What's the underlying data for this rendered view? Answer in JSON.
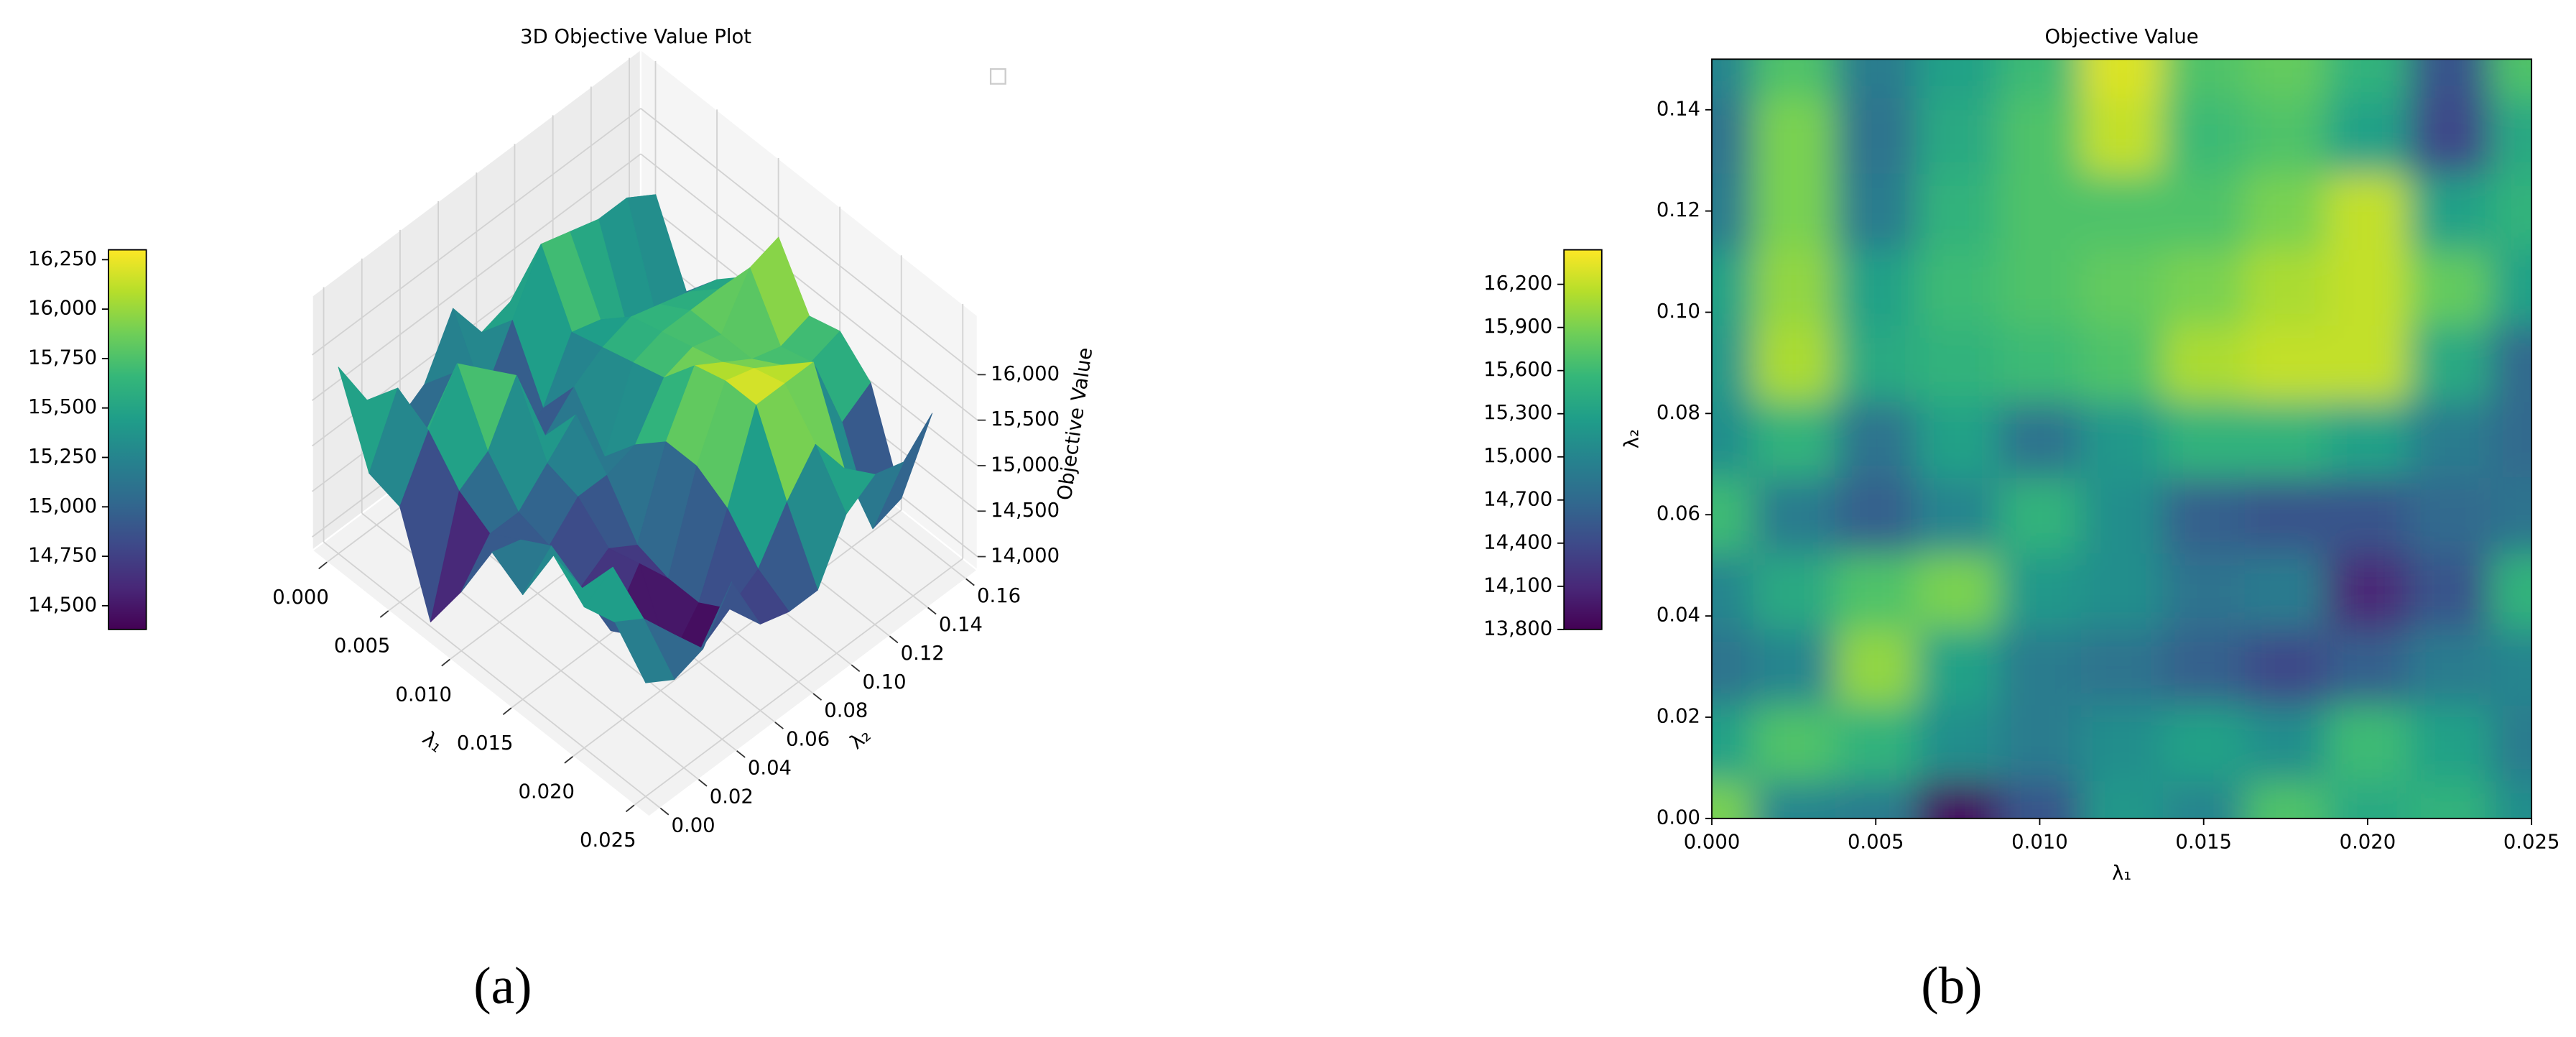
{
  "chart_data": [
    {
      "type": "surface3d",
      "title": "3D Objective Value Plot",
      "x_label": "λ₁",
      "y_label": "λ₂",
      "z_label": "Objective Value",
      "caption": "(a)",
      "colormap": "viridis",
      "x": [
        0,
        0.0025,
        0.005,
        0.0075,
        0.01,
        0.0125,
        0.015,
        0.0175,
        0.02,
        0.0225,
        0.025
      ],
      "y": [
        0,
        0.015,
        0.03,
        0.045,
        0.06,
        0.075,
        0.09,
        0.105,
        0.12,
        0.135,
        0.15
      ],
      "z": [
        [
          15900,
          15000,
          14900,
          13900,
          14500,
          15200,
          15000,
          15700,
          15400,
          15500,
          15100
        ],
        [
          15300,
          15700,
          15500,
          15100,
          14900,
          15100,
          15300,
          15100,
          15600,
          15300,
          14900
        ],
        [
          14800,
          15000,
          16000,
          15300,
          14900,
          14800,
          14600,
          14400,
          14600,
          14900,
          15000
        ],
        [
          15000,
          15400,
          15700,
          15900,
          15200,
          15100,
          14800,
          14900,
          14100,
          14500,
          15500
        ],
        [
          15600,
          14900,
          14600,
          15000,
          15500,
          15100,
          14600,
          14500,
          14500,
          14700,
          14800
        ],
        [
          15100,
          15500,
          14800,
          15300,
          14800,
          15200,
          15500,
          15500,
          15300,
          14900,
          14700
        ],
        [
          15200,
          16100,
          15400,
          15500,
          15600,
          15700,
          16100,
          16200,
          16200,
          15400,
          14700
        ],
        [
          15300,
          16000,
          15300,
          15600,
          15700,
          15800,
          15900,
          16100,
          16200,
          15800,
          15300
        ],
        [
          14900,
          15900,
          14900,
          15500,
          15700,
          15700,
          15700,
          15900,
          16200,
          15300,
          15500
        ],
        [
          14800,
          15900,
          14800,
          15400,
          15700,
          16200,
          15600,
          15700,
          15300,
          14400,
          15400
        ],
        [
          15000,
          15700,
          14900,
          15300,
          15600,
          16300,
          15700,
          15800,
          15500,
          14500,
          15700
        ]
      ],
      "xlim": [
        -0.0012,
        0.0262
      ],
      "ylim": [
        -0.006,
        0.166
      ],
      "zlim": [
        13850,
        16650
      ],
      "xticks": [
        {
          "value": 0,
          "label": "0.000"
        },
        {
          "value": 0.005,
          "label": "0.005"
        },
        {
          "value": 0.01,
          "label": "0.010"
        },
        {
          "value": 0.015,
          "label": "0.015"
        },
        {
          "value": 0.02,
          "label": "0.020"
        },
        {
          "value": 0.025,
          "label": "0.025"
        }
      ],
      "yticks": [
        {
          "value": 0,
          "label": "0.00"
        },
        {
          "value": 0.02,
          "label": "0.02"
        },
        {
          "value": 0.04,
          "label": "0.04"
        },
        {
          "value": 0.06,
          "label": "0.06"
        },
        {
          "value": 0.08,
          "label": "0.08"
        },
        {
          "value": 0.1,
          "label": "0.10"
        },
        {
          "value": 0.12,
          "label": "0.12"
        },
        {
          "value": 0.14,
          "label": "0.14"
        },
        {
          "value": 0.16,
          "label": "0.16"
        }
      ],
      "zticks": [
        {
          "value": 14000,
          "label": "14,000"
        },
        {
          "value": 14500,
          "label": "14,500"
        },
        {
          "value": 15000,
          "label": "15,000"
        },
        {
          "value": 15500,
          "label": "15,500"
        },
        {
          "value": 16000,
          "label": "16,000"
        }
      ],
      "colorbar": {
        "clim": [
          14380,
          16300
        ],
        "ticks": [
          {
            "value": 14500,
            "label": "14,500"
          },
          {
            "value": 14750,
            "label": "14,750"
          },
          {
            "value": 15000,
            "label": "15,000"
          },
          {
            "value": 15250,
            "label": "15,250"
          },
          {
            "value": 15500,
            "label": "15,500"
          },
          {
            "value": 15750,
            "label": "15,750"
          },
          {
            "value": 16000,
            "label": "16,000"
          },
          {
            "value": 16250,
            "label": "16,250"
          }
        ]
      }
    },
    {
      "type": "contour",
      "title": "Objective Value",
      "x_label": "λ₁",
      "y_label": "λ₂",
      "caption": "(b)",
      "colormap": "viridis",
      "x": [
        0,
        0.0025,
        0.005,
        0.0075,
        0.01,
        0.0125,
        0.015,
        0.0175,
        0.02,
        0.0225,
        0.025
      ],
      "y": [
        0,
        0.015,
        0.03,
        0.045,
        0.06,
        0.075,
        0.09,
        0.105,
        0.12,
        0.135,
        0.15
      ],
      "z": [
        [
          15900,
          15000,
          14900,
          13900,
          14500,
          15200,
          15000,
          15700,
          15400,
          15500,
          15100
        ],
        [
          15300,
          15700,
          15500,
          15100,
          14900,
          15100,
          15300,
          15100,
          15600,
          15300,
          14900
        ],
        [
          14800,
          15000,
          16000,
          15300,
          14900,
          14800,
          14600,
          14400,
          14600,
          14900,
          15000
        ],
        [
          15000,
          15400,
          15700,
          15900,
          15200,
          15100,
          14800,
          14900,
          14100,
          14500,
          15500
        ],
        [
          15600,
          14900,
          14600,
          15000,
          15500,
          15100,
          14600,
          14500,
          14500,
          14700,
          14800
        ],
        [
          15100,
          15500,
          14800,
          15300,
          14800,
          15200,
          15500,
          15500,
          15300,
          14900,
          14700
        ],
        [
          15200,
          16100,
          15400,
          15500,
          15600,
          15700,
          16100,
          16200,
          16200,
          15400,
          14700
        ],
        [
          15300,
          16000,
          15300,
          15600,
          15700,
          15800,
          15900,
          16100,
          16200,
          15800,
          15300
        ],
        [
          14900,
          15900,
          14900,
          15500,
          15700,
          15700,
          15700,
          15900,
          16200,
          15300,
          15500
        ],
        [
          14800,
          15900,
          14800,
          15400,
          15700,
          16200,
          15600,
          15700,
          15300,
          14400,
          15400
        ],
        [
          15000,
          15700,
          14900,
          15300,
          15600,
          16300,
          15700,
          15800,
          15500,
          14500,
          15700
        ]
      ],
      "xlim": [
        0,
        0.025
      ],
      "ylim": [
        0,
        0.15
      ],
      "xticks": [
        {
          "value": 0,
          "label": "0.000"
        },
        {
          "value": 0.005,
          "label": "0.005"
        },
        {
          "value": 0.01,
          "label": "0.010"
        },
        {
          "value": 0.015,
          "label": "0.015"
        },
        {
          "value": 0.02,
          "label": "0.020"
        },
        {
          "value": 0.025,
          "label": "0.025"
        }
      ],
      "yticks": [
        {
          "value": 0,
          "label": "0.00"
        },
        {
          "value": 0.02,
          "label": "0.02"
        },
        {
          "value": 0.04,
          "label": "0.04"
        },
        {
          "value": 0.06,
          "label": "0.06"
        },
        {
          "value": 0.08,
          "label": "0.08"
        },
        {
          "value": 0.1,
          "label": "0.10"
        },
        {
          "value": 0.12,
          "label": "0.12"
        },
        {
          "value": 0.14,
          "label": "0.14"
        }
      ],
      "colorbar": {
        "clim": [
          13800,
          16440
        ],
        "ticks": [
          {
            "value": 13800,
            "label": "13,800"
          },
          {
            "value": 14100,
            "label": "14,100"
          },
          {
            "value": 14400,
            "label": "14,400"
          },
          {
            "value": 14700,
            "label": "14,700"
          },
          {
            "value": 15000,
            "label": "15,000"
          },
          {
            "value": 15300,
            "label": "15,300"
          },
          {
            "value": 15600,
            "label": "15,600"
          },
          {
            "value": 15900,
            "label": "15,900"
          },
          {
            "value": 16200,
            "label": "16,200"
          }
        ]
      }
    }
  ]
}
